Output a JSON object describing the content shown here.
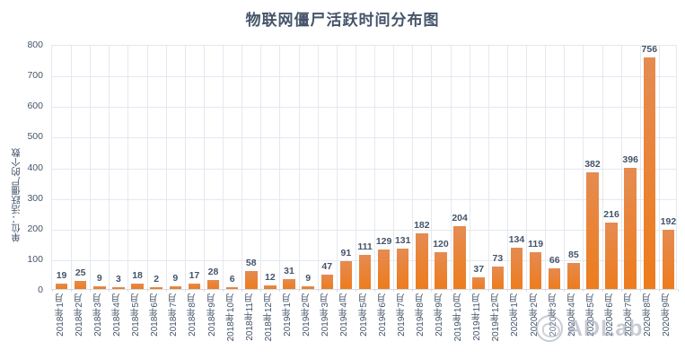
{
  "chart_data": {
    "type": "bar",
    "title": "物联网僵尸活跃时间分布图",
    "ylabel": "单位：活跃僵尸的个数",
    "xlabel": "",
    "categories": [
      "2018年1月",
      "2018年2月",
      "2018年3月",
      "2018年4月",
      "2018年5月",
      "2018年6月",
      "2018年7月",
      "2018年8月",
      "2018年9月",
      "2018年10月",
      "2018年11月",
      "2018年12月",
      "2019年1月",
      "2019年2月",
      "2019年3月",
      "2019年4月",
      "2019年5月",
      "2019年6月",
      "2019年7月",
      "2019年8月",
      "2019年9月",
      "2019年10月",
      "2019年11月",
      "2019年12月",
      "2020年1月",
      "2020年2月",
      "2020年3月",
      "2020年4月",
      "2020年5月",
      "2020年6月",
      "2020年7月",
      "2020年8月",
      "2020年9月"
    ],
    "values": [
      19,
      25,
      9,
      3,
      18,
      2,
      9,
      17,
      28,
      6,
      58,
      12,
      31,
      9,
      47,
      91,
      111,
      129,
      131,
      182,
      120,
      204,
      37,
      73,
      134,
      119,
      66,
      85,
      382,
      216,
      396,
      756,
      192
    ],
    "ylim": [
      0,
      800
    ],
    "yticks": [
      0,
      100,
      200,
      300,
      400,
      500,
      600,
      700,
      800
    ],
    "grid": "horizontal-and-vertical",
    "legend": "none",
    "data_labels": "above-bars",
    "bar_color_top": "#E58B51",
    "bar_color_bottom": "#ED7C1D",
    "label_color": "#44546A",
    "gridline_color": "#E4E8EF",
    "axis_line_color": "#D4DAE4"
  },
  "watermark": {
    "logo": "circle-logo",
    "text": "ADLab"
  }
}
